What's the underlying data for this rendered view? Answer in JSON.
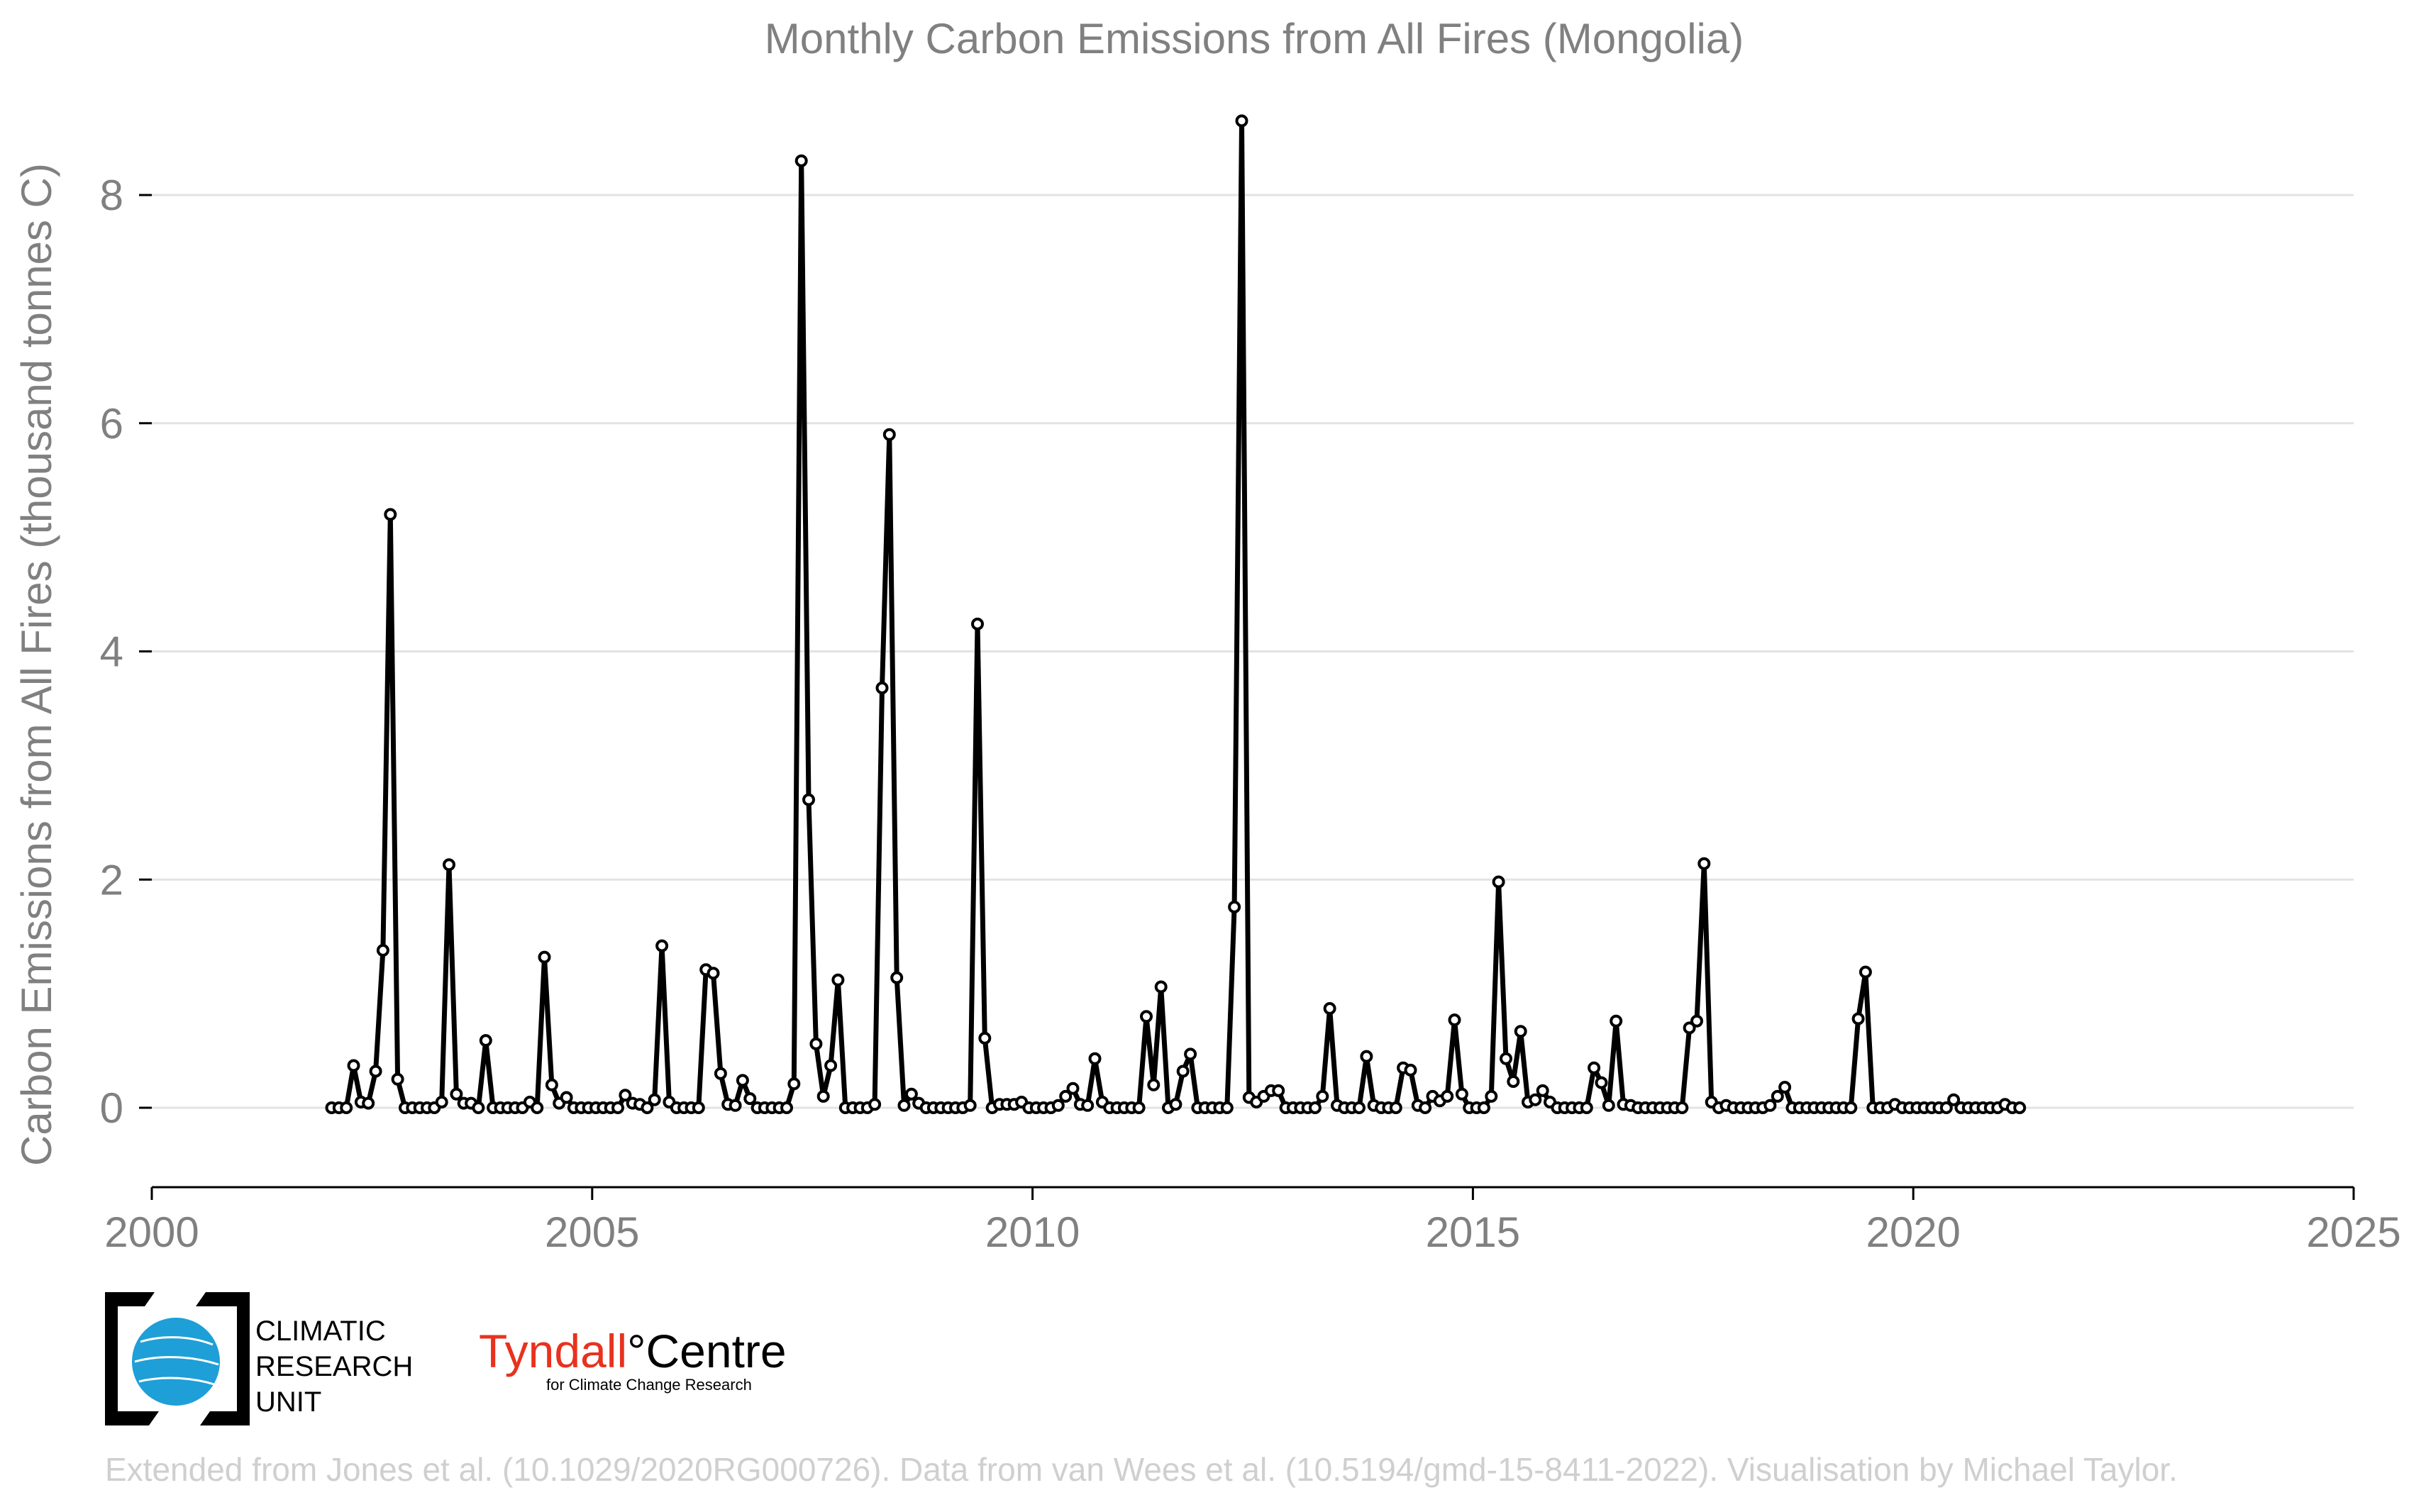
{
  "chart_data": {
    "type": "line",
    "title": "Monthly Carbon Emissions from All Fires (Mongolia)",
    "xlabel": "",
    "ylabel": "Carbon Emissions from All Fires (thousand tonnes C)",
    "xlim": [
      2000,
      2025
    ],
    "ylim": [
      -0.6,
      8.7
    ],
    "xticks": [
      "2000",
      "2005",
      "2010",
      "2015",
      "2020",
      "2025"
    ],
    "yticks": [
      "0",
      "2",
      "4",
      "6",
      "8"
    ],
    "grid": "horizontal",
    "legend": "none",
    "x_start": "2002-01",
    "x_end": "2020-12",
    "series": [
      {
        "values": [
          0,
          0,
          0,
          0.37,
          0.05,
          0.04,
          0.32,
          1.38,
          5.2,
          0.25,
          0,
          0,
          0,
          0,
          0,
          0.05,
          2.13,
          0.12,
          0.04,
          0.04,
          0,
          0.59,
          0,
          0,
          0,
          0,
          0,
          0.05,
          0,
          1.32,
          0.2,
          0.04,
          0.09,
          0,
          0,
          0,
          0,
          0,
          0,
          0,
          0.11,
          0.04,
          0.03,
          0,
          0.07,
          1.42,
          0.05,
          0,
          0,
          0,
          0,
          1.21,
          1.18,
          0.3,
          0.03,
          0.02,
          0.24,
          0.08,
          0,
          0,
          0,
          0,
          0,
          0.21,
          8.3,
          2.7,
          0.56,
          0.1,
          0.37,
          1.12,
          0,
          0,
          0,
          0,
          0.03,
          3.68,
          5.9,
          1.14,
          0.02,
          0.12,
          0.04,
          0,
          0,
          0,
          0,
          0,
          0,
          0.02,
          4.24,
          0.61,
          0,
          0.03,
          0.03,
          0.03,
          0.05,
          0,
          0,
          0,
          0,
          0.02,
          0.1,
          0.17,
          0.03,
          0.02,
          0.43,
          0.05,
          0,
          0,
          0,
          0,
          0,
          0.8,
          0.2,
          1.06,
          0,
          0.03,
          0.32,
          0.47,
          0,
          0,
          0,
          0,
          0,
          1.76,
          8.65,
          0.09,
          0.05,
          0.1,
          0.15,
          0.15,
          0,
          0,
          0,
          0,
          0,
          0.1,
          0.87,
          0.02,
          0,
          0,
          0,
          0.45,
          0.02,
          0,
          0,
          0,
          0.35,
          0.33,
          0.02,
          0,
          0.1,
          0.06,
          0.1,
          0.77,
          0.12,
          0,
          0,
          0,
          0.1,
          1.98,
          0.43,
          0.23,
          0.67,
          0.05,
          0.07,
          0.15,
          0.05,
          0,
          0,
          0,
          0,
          0,
          0.35,
          0.22,
          0.02,
          0.76,
          0.03,
          0.02,
          0,
          0,
          0,
          0,
          0,
          0,
          0,
          0.7,
          0.76,
          2.14,
          0.05,
          0,
          0.02,
          0,
          0,
          0,
          0,
          0,
          0.02,
          0.1,
          0.18,
          0,
          0,
          0,
          0,
          0,
          0,
          0,
          0,
          0,
          0.78,
          1.19,
          0,
          0,
          0,
          0.03,
          0,
          0,
          0,
          0,
          0,
          0,
          0,
          0.07,
          0,
          0,
          0,
          0,
          0,
          0,
          0.03,
          0,
          0
        ]
      }
    ]
  },
  "logos": {
    "cru_text": [
      "CLIMATIC",
      "RESEARCH",
      "UNIT"
    ],
    "tyndall_name_1": "Tyndall",
    "tyndall_name_2": "°Centre",
    "tyndall_sub": "for Climate Change Research"
  },
  "credit": "Extended from Jones et al. (10.1029/2020RG000726). Data from van Wees et al. (10.5194/gmd-15-8411-2022). Visualisation by Michael Taylor.",
  "colors": {
    "line": "#000000",
    "text": "#808080",
    "grid": "#e3e3e3",
    "tyndall_red": "#e8321e",
    "cru_blue": "#1e9fd7"
  }
}
